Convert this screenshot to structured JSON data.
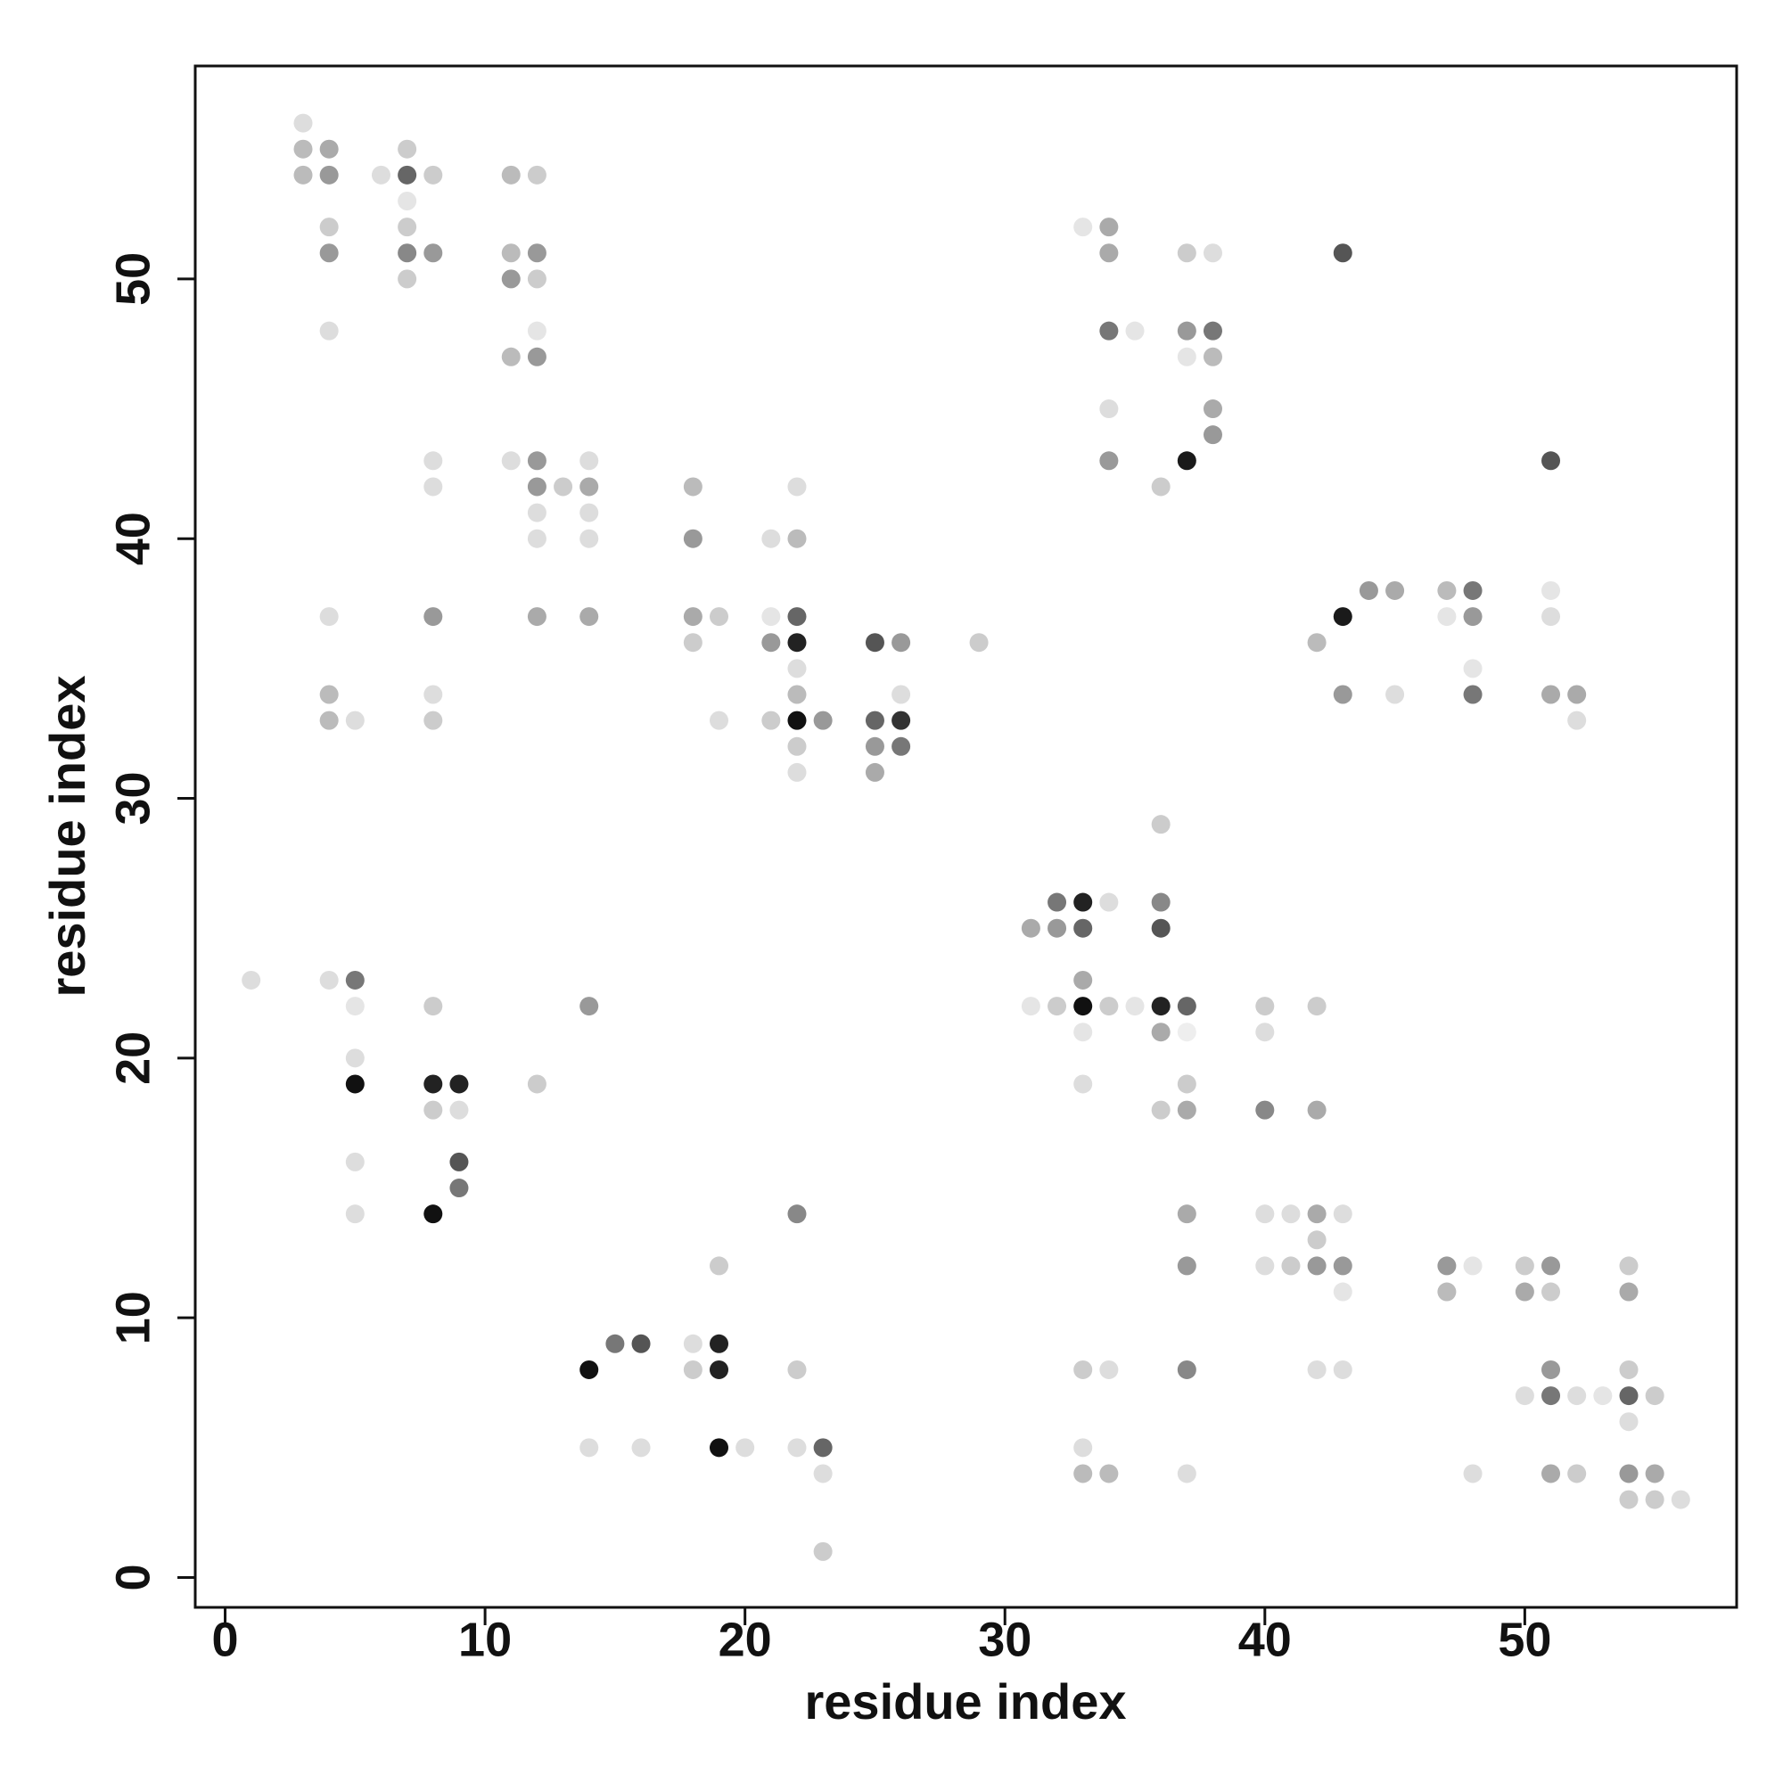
{
  "chart_data": {
    "type": "scatter",
    "x_label": "residue index",
    "y_label": "residue index",
    "xlim": [
      -1.15,
      58.15
    ],
    "ylim": [
      -1.15,
      58.2
    ],
    "xticks": [
      0,
      10,
      20,
      30,
      40,
      50
    ],
    "yticks": [
      0,
      10,
      20,
      30,
      40,
      50
    ],
    "x": [
      3,
      3,
      4,
      7,
      3,
      4,
      6,
      7,
      8,
      11,
      12,
      7,
      4,
      7,
      33,
      34,
      4,
      7,
      8,
      11,
      12,
      34,
      37,
      38,
      43,
      7,
      11,
      12,
      4,
      12,
      34,
      35,
      37,
      38,
      11,
      12,
      37,
      38,
      34,
      38,
      38,
      8,
      11,
      12,
      14,
      34,
      37,
      51,
      8,
      12,
      13,
      14,
      18,
      22,
      36,
      12,
      14,
      12,
      14,
      18,
      21,
      22,
      44,
      45,
      47,
      48,
      51,
      4,
      8,
      12,
      14,
      18,
      19,
      21,
      22,
      43,
      47,
      48,
      51,
      18,
      21,
      22,
      25,
      26,
      29,
      42,
      22,
      48,
      4,
      8,
      22,
      26,
      43,
      45,
      48,
      51,
      52,
      4,
      5,
      8,
      19,
      21,
      22,
      23,
      25,
      26,
      52,
      22,
      25,
      26,
      22,
      25,
      36,
      32,
      33,
      34,
      36,
      31,
      32,
      33,
      36,
      1,
      4,
      5,
      33,
      5,
      8,
      14,
      31,
      32,
      33,
      34,
      35,
      36,
      37,
      40,
      42,
      33,
      36,
      37,
      40,
      5,
      5,
      8,
      9,
      12,
      33,
      37,
      8,
      9,
      36,
      37,
      40,
      42,
      5,
      9,
      9,
      5,
      8,
      22,
      37,
      40,
      41,
      42,
      43,
      42,
      19,
      37,
      40,
      41,
      42,
      43,
      47,
      48,
      50,
      51,
      54,
      43,
      47,
      50,
      51,
      54,
      15,
      16,
      18,
      19,
      14,
      18,
      19,
      22,
      33,
      34,
      37,
      42,
      43,
      51,
      54,
      50,
      51,
      52,
      53,
      54,
      55,
      54,
      14,
      16,
      19,
      20,
      22,
      23,
      33,
      23,
      33,
      34,
      37,
      48,
      51,
      52,
      54,
      55,
      54,
      55,
      56,
      23
    ],
    "y": [
      56,
      55,
      55,
      55,
      54,
      54,
      54,
      54,
      54,
      54,
      54,
      53,
      52,
      52,
      52,
      52,
      51,
      51,
      51,
      51,
      51,
      51,
      51,
      51,
      51,
      50,
      50,
      50,
      48,
      48,
      48,
      48,
      48,
      48,
      47,
      47,
      47,
      47,
      45,
      45,
      44,
      43,
      43,
      43,
      43,
      43,
      43,
      43,
      42,
      42,
      42,
      42,
      42,
      42,
      42,
      41,
      41,
      40,
      40,
      40,
      40,
      40,
      38,
      38,
      38,
      38,
      38,
      37,
      37,
      37,
      37,
      37,
      37,
      37,
      37,
      37,
      37,
      37,
      37,
      36,
      36,
      36,
      36,
      36,
      36,
      36,
      35,
      35,
      34,
      34,
      34,
      34,
      34,
      34,
      34,
      34,
      34,
      33,
      33,
      33,
      33,
      33,
      33,
      33,
      33,
      33,
      33,
      32,
      32,
      32,
      31,
      31,
      29,
      26,
      26,
      26,
      26,
      25,
      25,
      25,
      25,
      23,
      23,
      23,
      23,
      22,
      22,
      22,
      22,
      22,
      22,
      22,
      22,
      22,
      22,
      22,
      22,
      21,
      21,
      21,
      21,
      20,
      19,
      19,
      19,
      19,
      19,
      19,
      18,
      18,
      18,
      18,
      18,
      18,
      16,
      16,
      15,
      14,
      14,
      14,
      14,
      14,
      14,
      14,
      14,
      13,
      12,
      12,
      12,
      12,
      12,
      12,
      12,
      12,
      12,
      12,
      12,
      11,
      11,
      11,
      11,
      11,
      9,
      9,
      9,
      9,
      8,
      8,
      8,
      8,
      8,
      8,
      8,
      8,
      8,
      8,
      8,
      7,
      7,
      7,
      7,
      7,
      7,
      6,
      5,
      5,
      5,
      5,
      5,
      5,
      5,
      4,
      4,
      4,
      4,
      4,
      4,
      4,
      4,
      4,
      3,
      3,
      3,
      1
    ],
    "colors": [
      "#ddd",
      "#bbb",
      "#aaa",
      "#ccc",
      "#bbb",
      "#999",
      "#ddd",
      "#666",
      "#ccc",
      "#bbb",
      "#ccc",
      "#e5e5e5",
      "#ccc",
      "#ccc",
      "#e5e5e5",
      "#aaa",
      "#999",
      "#888",
      "#999",
      "#bbb",
      "#999",
      "#aaa",
      "#ccc",
      "#ddd",
      "#555",
      "#ccc",
      "#999",
      "#ccc",
      "#ddd",
      "#e5e5e5",
      "#777",
      "#e5e5e5",
      "#999",
      "#777",
      "#bbb",
      "#999",
      "#e5e5e5",
      "#bbb",
      "#ddd",
      "#aaa",
      "#999",
      "#ddd",
      "#ddd",
      "#999",
      "#ddd",
      "#999",
      "#1a1a1a",
      "#555",
      "#ddd",
      "#999",
      "#ccc",
      "#aaa",
      "#bbb",
      "#ddd",
      "#ccc",
      "#ddd",
      "#ddd",
      "#ddd",
      "#ddd",
      "#999",
      "#ddd",
      "#bbb",
      "#999",
      "#aaa",
      "#bbb",
      "#777",
      "#e5e5e5",
      "#ddd",
      "#999",
      "#aaa",
      "#aaa",
      "#aaa",
      "#ccc",
      "#e5e5e5",
      "#666",
      "#1a1a1a",
      "#e5e5e5",
      "#999",
      "#ddd",
      "#ccc",
      "#999",
      "#222",
      "#555",
      "#999",
      "#ccc",
      "#bbb",
      "#ddd",
      "#e5e5e5",
      "#bbb",
      "#ddd",
      "#bbb",
      "#ddd",
      "#999",
      "#ddd",
      "#777",
      "#aaa",
      "#aaa",
      "#bbb",
      "#ddd",
      "#ccc",
      "#ddd",
      "#ccc",
      "#111",
      "#999",
      "#666",
      "#333",
      "#ddd",
      "#ccc",
      "#999",
      "#777",
      "#ddd",
      "#aaa",
      "#ccc",
      "#777",
      "#222",
      "#ddd",
      "#888",
      "#aaa",
      "#999",
      "#666",
      "#555",
      "#ddd",
      "#ddd",
      "#777",
      "#aaa",
      "#e5e5e5",
      "#ccc",
      "#999",
      "#e5e5e5",
      "#ccc",
      "#111",
      "#ccc",
      "#e5e5e5",
      "#222",
      "#666",
      "#ccc",
      "#ccc",
      "#e5e5e5",
      "#aaa",
      "#eee",
      "#ddd",
      "#ddd",
      "#111",
      "#222",
      "#222",
      "#ccc",
      "#ddd",
      "#ccc",
      "#ccc",
      "#ddd",
      "#ccc",
      "#aaa",
      "#888",
      "#aaa",
      "#ddd",
      "#555",
      "#777",
      "#ddd",
      "#111",
      "#888",
      "#aaa",
      "#ddd",
      "#ddd",
      "#aaa",
      "#ddd",
      "#ccc",
      "#ccc",
      "#999",
      "#ddd",
      "#ccc",
      "#999",
      "#999",
      "#999",
      "#e5e5e5",
      "#ccc",
      "#999",
      "#ccc",
      "#e5e5e5",
      "#bbb",
      "#aaa",
      "#ccc",
      "#aaa",
      "#777",
      "#555",
      "#ddd",
      "#222",
      "#111",
      "#ccc",
      "#222",
      "#ccc",
      "#ccc",
      "#ddd",
      "#888",
      "#ddd",
      "#ddd",
      "#999",
      "#ccc",
      "#ddd",
      "#777",
      "#ddd",
      "#e5e5e5",
      "#666",
      "#ccc",
      "#ddd",
      "#ddd",
      "#ddd",
      "#111",
      "#ddd",
      "#ddd",
      "#666",
      "#ddd",
      "#ddd",
      "#bbb",
      "#bbb",
      "#ddd",
      "#ddd",
      "#aaa",
      "#ccc",
      "#999",
      "#aaa",
      "#ccc",
      "#ccc",
      "#ddd",
      "#ccc"
    ]
  }
}
